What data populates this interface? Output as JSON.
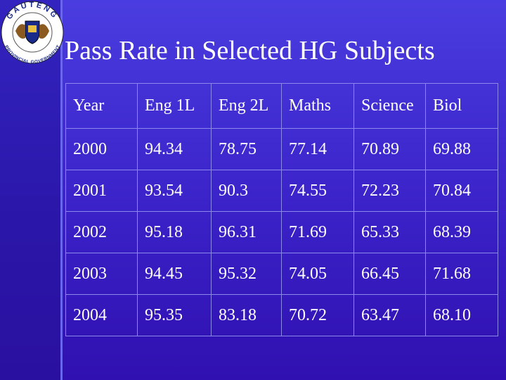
{
  "logo": {
    "top": "GAUTENG",
    "bottom": "PROVINCIAL GOVERNMENT"
  },
  "header": {
    "title": "Pass Rate in Selected HG Subjects"
  },
  "table": {
    "columns": [
      "Year",
      "Eng 1L",
      "Eng 2L",
      "Maths",
      "Science",
      "Biol"
    ],
    "rows": [
      [
        "2000",
        "94.34",
        "78.75",
        "77.14",
        "70.89",
        "69.88"
      ],
      [
        "2001",
        "93.54",
        "90.3",
        "74.55",
        "72.23",
        "70.84"
      ],
      [
        "2002",
        "95.18",
        "96.31",
        "71.69",
        "65.33",
        "68.39"
      ],
      [
        "2003",
        "94.45",
        "95.32",
        "74.05",
        "66.45",
        "71.68"
      ],
      [
        "2004",
        "95.35",
        "83.18",
        "70.72",
        "63.47",
        "68.10"
      ]
    ]
  }
}
